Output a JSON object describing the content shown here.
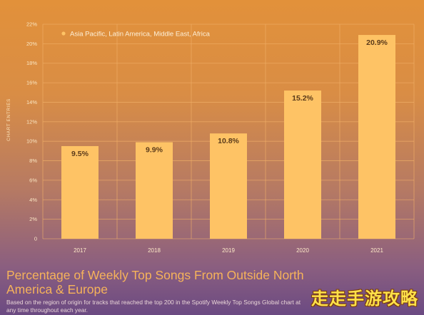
{
  "chart_data": {
    "type": "bar",
    "categories": [
      "2017",
      "2018",
      "2019",
      "2020",
      "2021"
    ],
    "values": [
      9.5,
      9.9,
      10.8,
      15.2,
      20.9
    ],
    "data_labels": [
      "9.5%",
      "9.9%",
      "10.8%",
      "15.2%",
      "20.9%"
    ],
    "ylim": [
      0,
      22
    ],
    "yticks": [
      0,
      2,
      4,
      6,
      8,
      10,
      12,
      14,
      16,
      18,
      20,
      22
    ],
    "ytick_labels": [
      "0",
      "2%",
      "4%",
      "6%",
      "8%",
      "10%",
      "12%",
      "14%",
      "16%",
      "18%",
      "20%",
      "22%"
    ],
    "ylabel": "CHART ENTRIES",
    "xlabel": "",
    "legend": {
      "entries": [
        "Asia Pacific, Latin America, Middle East, Africa"
      ],
      "position": "top-left"
    },
    "grid": true,
    "title": "Percentage of Weekly Top Songs From Outside North America & Europe",
    "subtitle": "Based on the region of origin for tracks that reached the top 200 in the Spotify Weekly Top Songs Global chart at any time throughout each year.",
    "colors": {
      "bar": "#fec365",
      "grid": "#f2b06a",
      "legend_dot": "#fec365"
    }
  },
  "watermark": "走走手游攻略"
}
